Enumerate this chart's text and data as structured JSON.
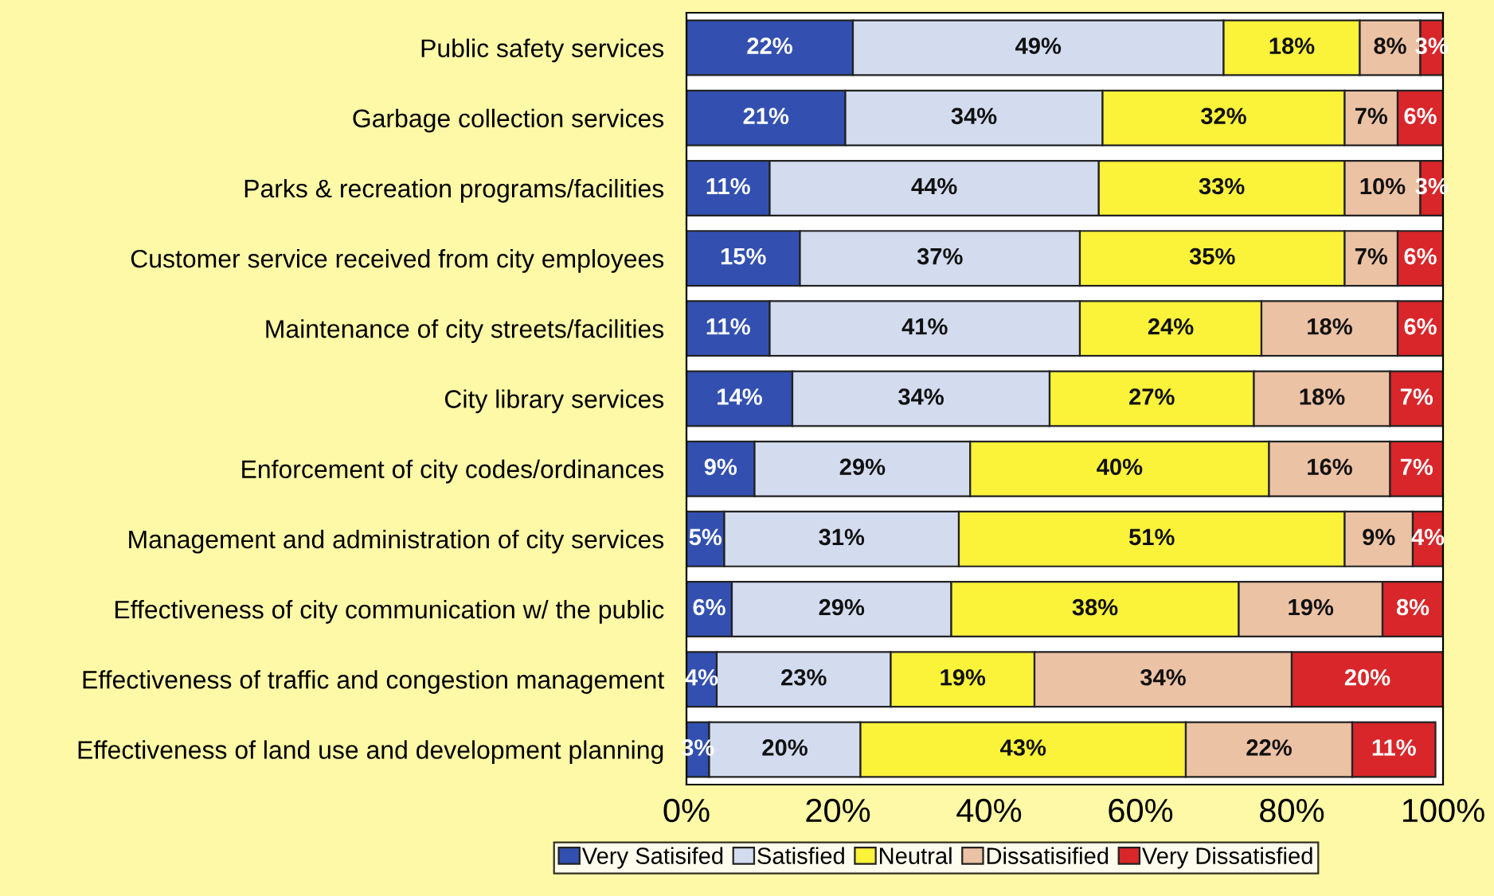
{
  "chart_data": {
    "type": "bar",
    "orientation": "horizontal",
    "stacked": true,
    "legend": "bottom",
    "grid": false,
    "categories": [
      "Public safety services",
      "Garbage collection services",
      "Parks & recreation programs/facilities",
      "Customer service received from city employees",
      "Maintenance of city streets/facilities",
      "City library services",
      "Enforcement of city codes/ordinances",
      "Management and administration of city services",
      "Effectiveness of city communication w/ the public",
      "Effectiveness of traffic and congestion management",
      "Effectiveness of land use and development planning"
    ],
    "series": [
      {
        "name": "Very Satisifed",
        "color": "#3350b0",
        "values": [
          22,
          21,
          11,
          15,
          11,
          14,
          9,
          5,
          6,
          4,
          3
        ],
        "value_labels": [
          "22%",
          "21%",
          "11%",
          "15%",
          "11%",
          "14%",
          "9%",
          "5%",
          "6%",
          "4%",
          "3%"
        ]
      },
      {
        "name": "Satisfied",
        "color": "#d3dcef",
        "values": [
          49,
          34,
          43.5,
          37,
          41,
          34,
          28.5,
          31,
          29,
          23,
          20
        ],
        "value_labels": [
          "49%",
          "34%",
          "44%",
          "37%",
          "41%",
          "34%",
          "29%",
          "31%",
          "29%",
          "23%",
          "20%"
        ]
      },
      {
        "name": "Neutral",
        "color": "#fbf23a",
        "values": [
          18,
          32,
          32.5,
          35,
          24,
          27,
          39.5,
          51,
          38,
          19,
          43
        ],
        "value_labels": [
          "18%",
          "32%",
          "33%",
          "35%",
          "24%",
          "27%",
          "40%",
          "51%",
          "38%",
          "19%",
          "43%"
        ]
      },
      {
        "name": "Dissatisified",
        "color": "#ecc2a4",
        "values": [
          8,
          7,
          10,
          7,
          18,
          18,
          16,
          9,
          19,
          34,
          22
        ],
        "value_labels": [
          "8%",
          "7%",
          "10%",
          "7%",
          "18%",
          "18%",
          "16%",
          "9%",
          "19%",
          "34%",
          "22%"
        ]
      },
      {
        "name": "Very Dissatisfied",
        "color": "#d8262a",
        "values": [
          3,
          6,
          3,
          6,
          6,
          7,
          7,
          4,
          8,
          20,
          11
        ],
        "value_labels": [
          "3%",
          "6%",
          "3%",
          "6%",
          "6%",
          "7%",
          "7%",
          "4%",
          "8%",
          "20%",
          "11%"
        ]
      }
    ],
    "xlim": [
      0,
      100
    ],
    "xticks": [
      {
        "value": 0,
        "label": "0%"
      },
      {
        "value": 20,
        "label": "20%"
      },
      {
        "value": 40,
        "label": "40%"
      },
      {
        "value": 60,
        "label": "60%"
      },
      {
        "value": 80,
        "label": "80%"
      },
      {
        "value": 100,
        "label": "100%"
      }
    ]
  }
}
